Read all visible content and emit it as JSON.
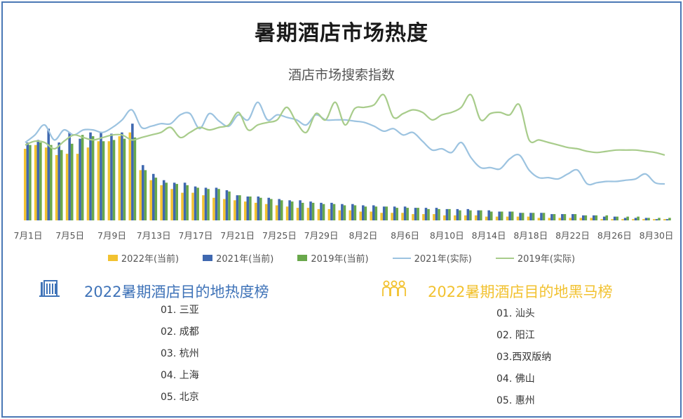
{
  "title": "暑期酒店市场热度",
  "chart_data": {
    "type": "bar+line",
    "subtitle": "酒店市场搜索指数",
    "x_tick_labels": [
      "7月1日",
      "7月5日",
      "7月9日",
      "7月13日",
      "7月17日",
      "7月21日",
      "7月25日",
      "7月29日",
      "8月2日",
      "8月6日",
      "8月10日",
      "8月14日",
      "8月18日",
      "8月22日",
      "8月26日",
      "8月30日"
    ],
    "ylim": [
      0,
      100
    ],
    "grid": false,
    "legend_position": "bottom",
    "bars_series": [
      {
        "name": "2022年(当前)",
        "color": "#f2c230",
        "values": [
          57,
          60,
          58,
          52,
          53,
          53,
          58,
          63,
          63,
          67,
          70,
          40,
          32,
          28,
          25,
          22,
          22,
          20,
          18,
          17,
          16,
          15,
          14,
          13,
          12,
          11,
          10,
          10,
          9,
          9,
          8,
          8,
          7,
          7,
          6,
          6,
          6,
          5,
          5,
          5,
          4,
          4,
          4,
          4,
          3,
          3,
          3,
          3,
          3,
          2,
          2,
          2,
          2,
          2,
          2,
          1,
          1,
          1,
          1,
          1,
          1,
          1
        ]
      },
      {
        "name": "2021年(当前)",
        "color": "#3f68b0",
        "values": [
          62,
          64,
          73,
          62,
          70,
          65,
          70,
          70,
          69,
          70,
          77,
          44,
          37,
          32,
          30,
          30,
          27,
          26,
          26,
          24,
          20,
          19,
          19,
          18,
          17,
          16,
          16,
          15,
          14,
          14,
          13,
          13,
          12,
          12,
          11,
          11,
          11,
          10,
          10,
          10,
          9,
          9,
          9,
          8,
          8,
          7,
          7,
          6,
          6,
          6,
          5,
          5,
          5,
          4,
          4,
          3,
          3,
          2,
          2,
          2,
          1,
          1
        ]
      },
      {
        "name": "2019年(当前)",
        "color": "#69a84b",
        "values": [
          60,
          62,
          60,
          56,
          61,
          68,
          67,
          63,
          64,
          65,
          66,
          40,
          34,
          30,
          29,
          28,
          26,
          25,
          25,
          23,
          20,
          19,
          18,
          17,
          16,
          15,
          14,
          14,
          13,
          13,
          12,
          12,
          11,
          11,
          11,
          10,
          10,
          10,
          9,
          9,
          9,
          8,
          8,
          8,
          7,
          7,
          7,
          6,
          6,
          6,
          5,
          5,
          5,
          4,
          4,
          4,
          3,
          3,
          3,
          2,
          2,
          2
        ]
      }
    ],
    "line_series": [
      {
        "name": "2021年(实际)",
        "color": "#9cc3e0",
        "values": [
          62,
          68,
          76,
          64,
          72,
          68,
          72,
          72,
          70,
          74,
          80,
          88,
          74,
          75,
          77,
          77,
          84,
          85,
          73,
          85,
          79,
          75,
          84,
          80,
          94,
          80,
          84,
          82,
          80,
          76,
          84,
          80,
          80,
          80,
          79,
          78,
          75,
          71,
          73,
          68,
          70,
          63,
          56,
          57,
          54,
          62,
          50,
          42,
          42,
          41,
          49,
          52,
          40,
          34,
          34,
          33,
          37,
          40,
          29,
          30,
          31,
          31,
          32,
          33,
          37,
          30,
          29
        ]
      },
      {
        "name": "2019年(实际)",
        "color": "#a8cc8b",
        "values": [
          60,
          63,
          62,
          57,
          63,
          68,
          66,
          64,
          66,
          68,
          68,
          64,
          66,
          68,
          70,
          74,
          66,
          70,
          74,
          72,
          74,
          76,
          86,
          72,
          76,
          78,
          80,
          90,
          78,
          70,
          85,
          80,
          94,
          76,
          89,
          90,
          92,
          100,
          82,
          85,
          88,
          86,
          80,
          84,
          86,
          90,
          100,
          80,
          85,
          86,
          84,
          92,
          64,
          64,
          62,
          60,
          58,
          57,
          55,
          54,
          55,
          56,
          56,
          56,
          55,
          54,
          52
        ]
      }
    ]
  },
  "legend": [
    "2022年(当前)",
    "2021年(当前)",
    "2019年(当前)",
    "2021年(实际)",
    "2019年(实际)"
  ],
  "hot_ranking": {
    "icon": "building-icon",
    "title": "2022暑期酒店目的地热度榜",
    "items": [
      "01. 三亚",
      "02. 成都",
      "03. 杭州",
      "04. 上海",
      "05. 北京"
    ]
  },
  "dark_horse_ranking": {
    "icon": "people-icon",
    "title": "2022暑期酒店目的地黑马榜",
    "items": [
      "01. 汕头",
      "02. 阳江",
      "03.西双版纳",
      "04. 佛山",
      "05. 惠州"
    ]
  }
}
